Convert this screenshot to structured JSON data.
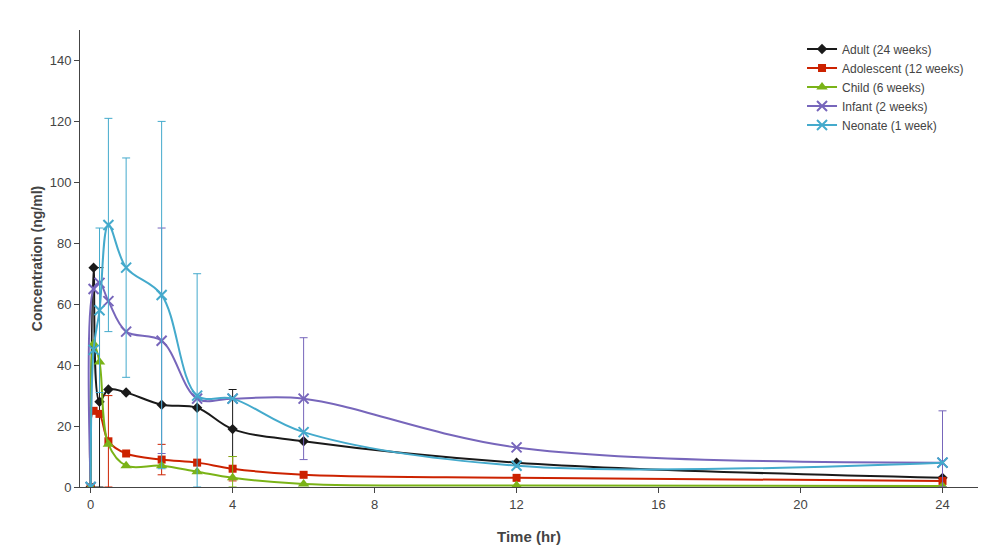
{
  "chart_data": {
    "type": "line",
    "xlabel": "Time (hr)",
    "ylabel": "Concentration (ng/ml)",
    "xlim": [
      -0.3,
      25
    ],
    "ylim": [
      0,
      150
    ],
    "xticks": [
      0,
      4,
      8,
      12,
      16,
      20,
      24
    ],
    "yticks": [
      0,
      20,
      40,
      60,
      80,
      100,
      120,
      140
    ],
    "grid": false,
    "legend": "upper right",
    "line_style": "smooth",
    "x": [
      0,
      0.083,
      0.25,
      0.5,
      1.0,
      2.0,
      3.0,
      4.0,
      6.0,
      12.0,
      24.0
    ],
    "series": [
      {
        "name": "Adult (24 weeks)",
        "color": "#1a1a1a",
        "marker": "diamond",
        "values": [
          0,
          72,
          28,
          32,
          31,
          27,
          26,
          19,
          15,
          8,
          3
        ],
        "error_plus": [
          0,
          0,
          44,
          0,
          0,
          0,
          0,
          13,
          0,
          0,
          0
        ],
        "error_minus": [
          0,
          0,
          28,
          0,
          0,
          0,
          0,
          13,
          0,
          0,
          0
        ]
      },
      {
        "name": "Adolescent (12 weeks)",
        "color": "#cc2200",
        "marker": "square",
        "values": [
          0,
          25,
          24,
          15,
          11,
          9,
          8,
          6,
          4,
          3,
          2
        ],
        "error_plus": [
          0,
          0,
          0,
          15,
          0,
          5,
          0,
          4,
          0,
          0,
          0
        ],
        "error_minus": [
          0,
          0,
          0,
          15,
          0,
          5,
          0,
          4,
          0,
          0,
          0
        ]
      },
      {
        "name": "Child (6 weeks)",
        "color": "#7ab317",
        "marker": "triangle",
        "values": [
          0,
          47,
          41,
          14,
          7,
          7,
          5,
          3,
          1,
          0.5,
          0.3
        ],
        "error_plus": [
          0,
          0,
          0,
          0,
          0,
          0,
          0,
          7,
          0,
          0,
          0
        ],
        "error_minus": [
          0,
          0,
          0,
          0,
          0,
          0,
          0,
          3,
          0,
          0,
          0
        ]
      },
      {
        "name": "Infant (2 weeks)",
        "color": "#7766bb",
        "marker": "x",
        "values": [
          0,
          65,
          67,
          61,
          51,
          48,
          29,
          29,
          29,
          13,
          8
        ],
        "error_plus": [
          0,
          0,
          0,
          0,
          0,
          37,
          0,
          0,
          20,
          0,
          17
        ],
        "error_minus": [
          0,
          0,
          0,
          0,
          0,
          37,
          0,
          0,
          20,
          0,
          8
        ]
      },
      {
        "name": "Neonate (1 week)",
        "color": "#44aacc",
        "marker": "x",
        "values": [
          0,
          45,
          58,
          86,
          72,
          63,
          30,
          29,
          18,
          7,
          8
        ],
        "error_plus": [
          0,
          0,
          27,
          35,
          36,
          57,
          40,
          0,
          0,
          0,
          0
        ],
        "error_minus": [
          0,
          0,
          27,
          35,
          36,
          57,
          30,
          0,
          0,
          0,
          0
        ]
      }
    ]
  }
}
